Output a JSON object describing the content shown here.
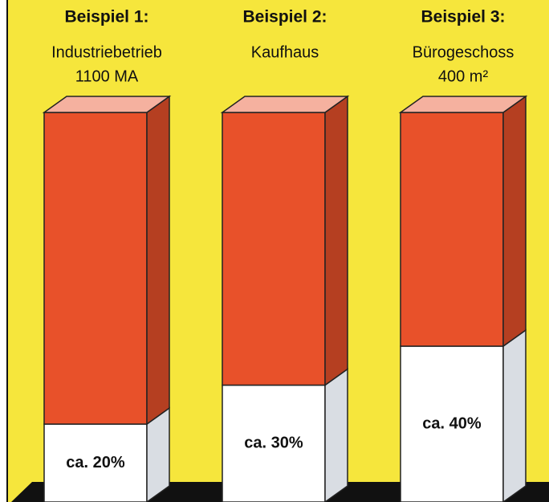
{
  "chart_data": {
    "type": "stacked-bar-3d",
    "categories": [
      "Beispiel 1:",
      "Beispiel 2:",
      "Beispiel 3:"
    ],
    "subtitles": [
      [
        "Industriebetrieb",
        "1100 MA"
      ],
      [
        "Kaufhaus"
      ],
      [
        "Bürogeschoss",
        "400 m²"
      ]
    ],
    "series": [
      {
        "color": "#ffffff",
        "values": [
          20,
          30,
          40
        ],
        "value_labels": [
          "ca. 20%",
          "ca. 30%",
          "ca. 40%"
        ]
      },
      {
        "color": "#e8512a",
        "values": [
          80,
          70,
          60
        ]
      }
    ]
  }
}
